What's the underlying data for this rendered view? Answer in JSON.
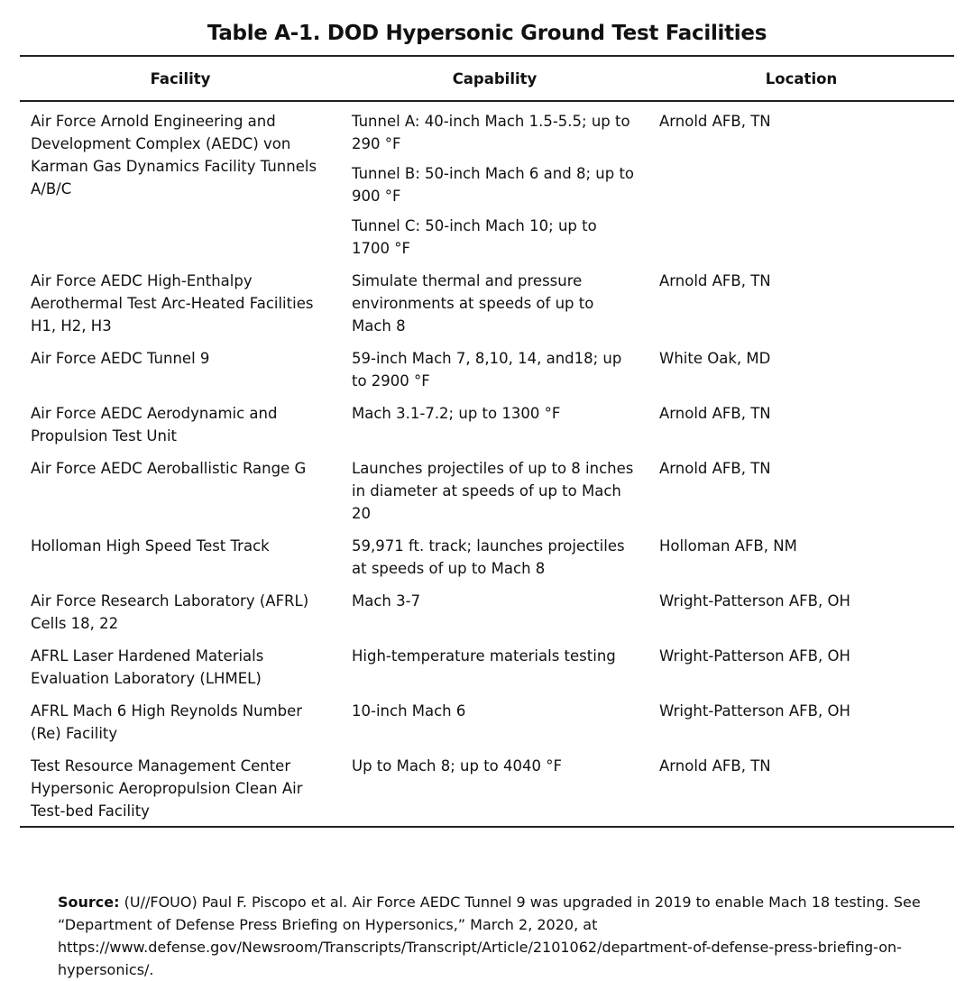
{
  "title": "Table A-1. DOD Hypersonic Ground Test Facilities",
  "table": {
    "headers": [
      "Facility",
      "Capability",
      "Location"
    ],
    "rows": [
      {
        "facility": "Air Force Arnold Engineering and Development Complex (AEDC) von Karman Gas Dynamics Facility Tunnels A/B/C",
        "capability": [
          "Tunnel A: 40-inch Mach 1.5-5.5; up to 290 °F",
          "Tunnel B: 50-inch Mach 6 and 8; up to 900 °F",
          "Tunnel C: 50-inch Mach 10; up to 1700 °F"
        ],
        "location": "Arnold AFB, TN"
      },
      {
        "facility": "Air Force AEDC High-Enthalpy Aerothermal Test Arc-Heated Facilities H1, H2, H3",
        "capability": [
          "Simulate thermal and pressure environments at speeds of up to Mach 8"
        ],
        "location": "Arnold AFB, TN"
      },
      {
        "facility": "Air Force AEDC Tunnel 9",
        "capability": [
          "59-inch Mach 7, 8,10, 14, and18; up to 2900 °F"
        ],
        "location": "White Oak, MD"
      },
      {
        "facility": "Air Force AEDC Aerodynamic and Propulsion Test Unit",
        "capability": [
          "Mach 3.1-7.2; up to 1300 °F"
        ],
        "location": "Arnold AFB, TN"
      },
      {
        "facility": "Air Force AEDC Aeroballistic Range G",
        "capability": [
          "Launches projectiles of up to 8 inches in diameter at speeds of up to Mach 20"
        ],
        "location": "Arnold AFB, TN"
      },
      {
        "facility": "Holloman High Speed Test Track",
        "capability": [
          "59,971 ft. track; launches projectiles at speeds of up to Mach 8"
        ],
        "location": "Holloman AFB, NM"
      },
      {
        "facility": "Air Force Research Laboratory (AFRL) Cells 18, 22",
        "capability": [
          "Mach 3-7"
        ],
        "location": "Wright-Patterson AFB, OH"
      },
      {
        "facility": "AFRL Laser Hardened Materials Evaluation Laboratory (LHMEL)",
        "capability": [
          "High-temperature materials testing"
        ],
        "location": "Wright-Patterson AFB, OH"
      },
      {
        "facility": "AFRL Mach 6 High Reynolds Number (Re) Facility",
        "capability": [
          "10-inch Mach 6"
        ],
        "location": "Wright-Patterson AFB, OH"
      },
      {
        "facility": "Test Resource Management Center Hypersonic Aeropropulsion Clean Air Test-bed Facility",
        "capability": [
          "Up to Mach 8; up to 4040 °F"
        ],
        "location": "Arnold AFB, TN"
      }
    ]
  },
  "source": {
    "label": "Source:",
    "text": "(U//FOUO) Paul F. Piscopo et al. Air Force AEDC Tunnel 9 was upgraded in 2019 to enable Mach 18 testing. See “Department of Defense Press Briefing on Hypersonics,” March 2, 2020, at https://www.defense.gov/Newsroom/Transcripts/Transcript/Article/2101062/department-of-defense-press-briefing-on-hypersonics/."
  }
}
